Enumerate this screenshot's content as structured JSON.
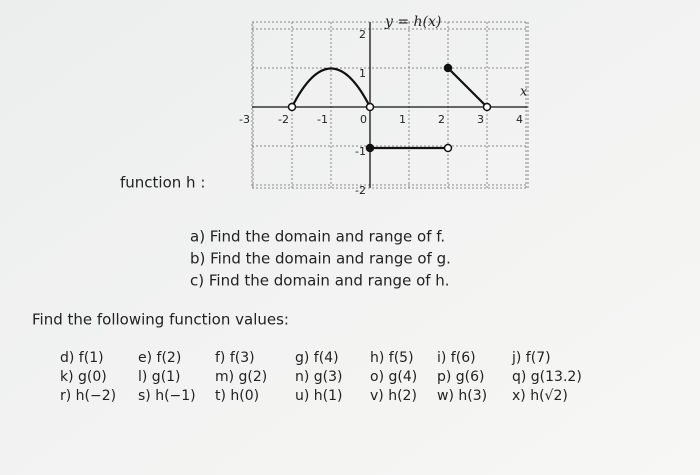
{
  "graph": {
    "label": "y = h(x)",
    "x_axis_label": "x",
    "x_tick_labels": [
      "-3",
      "-2",
      "-1",
      "0",
      "1",
      "2",
      "3",
      "4"
    ],
    "y_tick_labels": [
      "2",
      "1",
      "-1",
      "-2"
    ]
  },
  "function_label": "function h :",
  "questions": [
    "a) Find the domain and range of f.",
    "b) Find the domain and range of g.",
    "c) Find the domain and range of h."
  ],
  "prompt": "Find the following function values:",
  "values": [
    [
      "d) f(1)",
      "e) f(2)",
      "f) f(3)",
      "g) f(4)",
      "h) f(5)",
      "i) f(6)",
      "j) f(7)"
    ],
    [
      "k) g(0)",
      "l) g(1)",
      "m) g(2)",
      "n) g(3)",
      "o) g(4)",
      "p) g(6)",
      "q) g(13.2)"
    ],
    [
      "r) h(−2)",
      "s) h(−1)",
      "t) h(0)",
      "u) h(1)",
      "v) h(2)",
      "w) h(3)",
      "x) h(√2)"
    ]
  ]
}
